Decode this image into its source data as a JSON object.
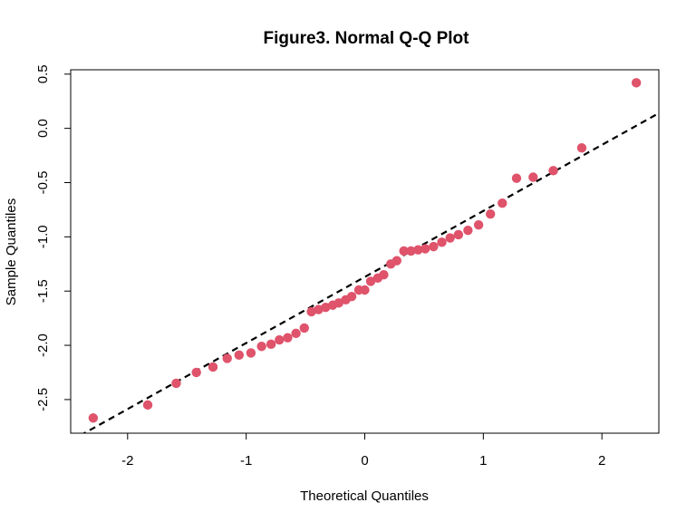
{
  "chart_data": {
    "type": "scatter",
    "title": "Figure3. Normal Q-Q Plot",
    "xlabel": "Theoretical Quantiles",
    "ylabel": "Sample Quantiles",
    "xlim": [
      -2.48,
      2.48
    ],
    "ylim": [
      -2.81,
      0.54
    ],
    "x_ticks": [
      -2,
      -1,
      0,
      1,
      2
    ],
    "y_ticks": [
      -2.5,
      -2.0,
      -1.5,
      -1.0,
      -0.5,
      0.0,
      0.5
    ],
    "x_tick_labels": [
      "-2",
      "-1",
      "0",
      "1",
      "2"
    ],
    "y_tick_labels": [
      "-2.5",
      "-2.0",
      "-1.5",
      "-1.0",
      "-0.5",
      "0.0",
      "0.5"
    ],
    "grid": false,
    "point_color": "#DF536B",
    "reference_line": {
      "style": "dashed",
      "color": "#000000",
      "x": [
        -2.48,
        2.48
      ],
      "y": [
        -2.88,
        0.14
      ]
    },
    "points": {
      "x": [
        -2.29,
        -1.83,
        -1.59,
        -1.42,
        -1.28,
        -1.16,
        -1.06,
        -0.96,
        -0.87,
        -0.79,
        -0.72,
        -0.65,
        -0.58,
        -0.51,
        -0.45,
        -0.39,
        -0.33,
        -0.27,
        -0.22,
        -0.16,
        -0.11,
        -0.05,
        0.0,
        0.05,
        0.11,
        0.16,
        0.22,
        0.27,
        0.33,
        0.39,
        0.45,
        0.51,
        0.58,
        0.65,
        0.72,
        0.79,
        0.87,
        0.96,
        1.06,
        1.16,
        1.28,
        1.42,
        1.59,
        1.83,
        2.29
      ],
      "y": [
        -2.67,
        -2.55,
        -2.35,
        -2.25,
        -2.2,
        -2.12,
        -2.09,
        -2.07,
        -2.01,
        -1.99,
        -1.95,
        -1.93,
        -1.89,
        -1.84,
        -1.69,
        -1.67,
        -1.65,
        -1.63,
        -1.61,
        -1.58,
        -1.55,
        -1.49,
        -1.49,
        -1.41,
        -1.38,
        -1.35,
        -1.25,
        -1.22,
        -1.13,
        -1.13,
        -1.12,
        -1.11,
        -1.09,
        -1.05,
        -1.01,
        -0.98,
        -0.94,
        -0.89,
        -0.79,
        -0.69,
        -0.46,
        -0.45,
        -0.39,
        -0.18,
        0.42
      ]
    }
  }
}
